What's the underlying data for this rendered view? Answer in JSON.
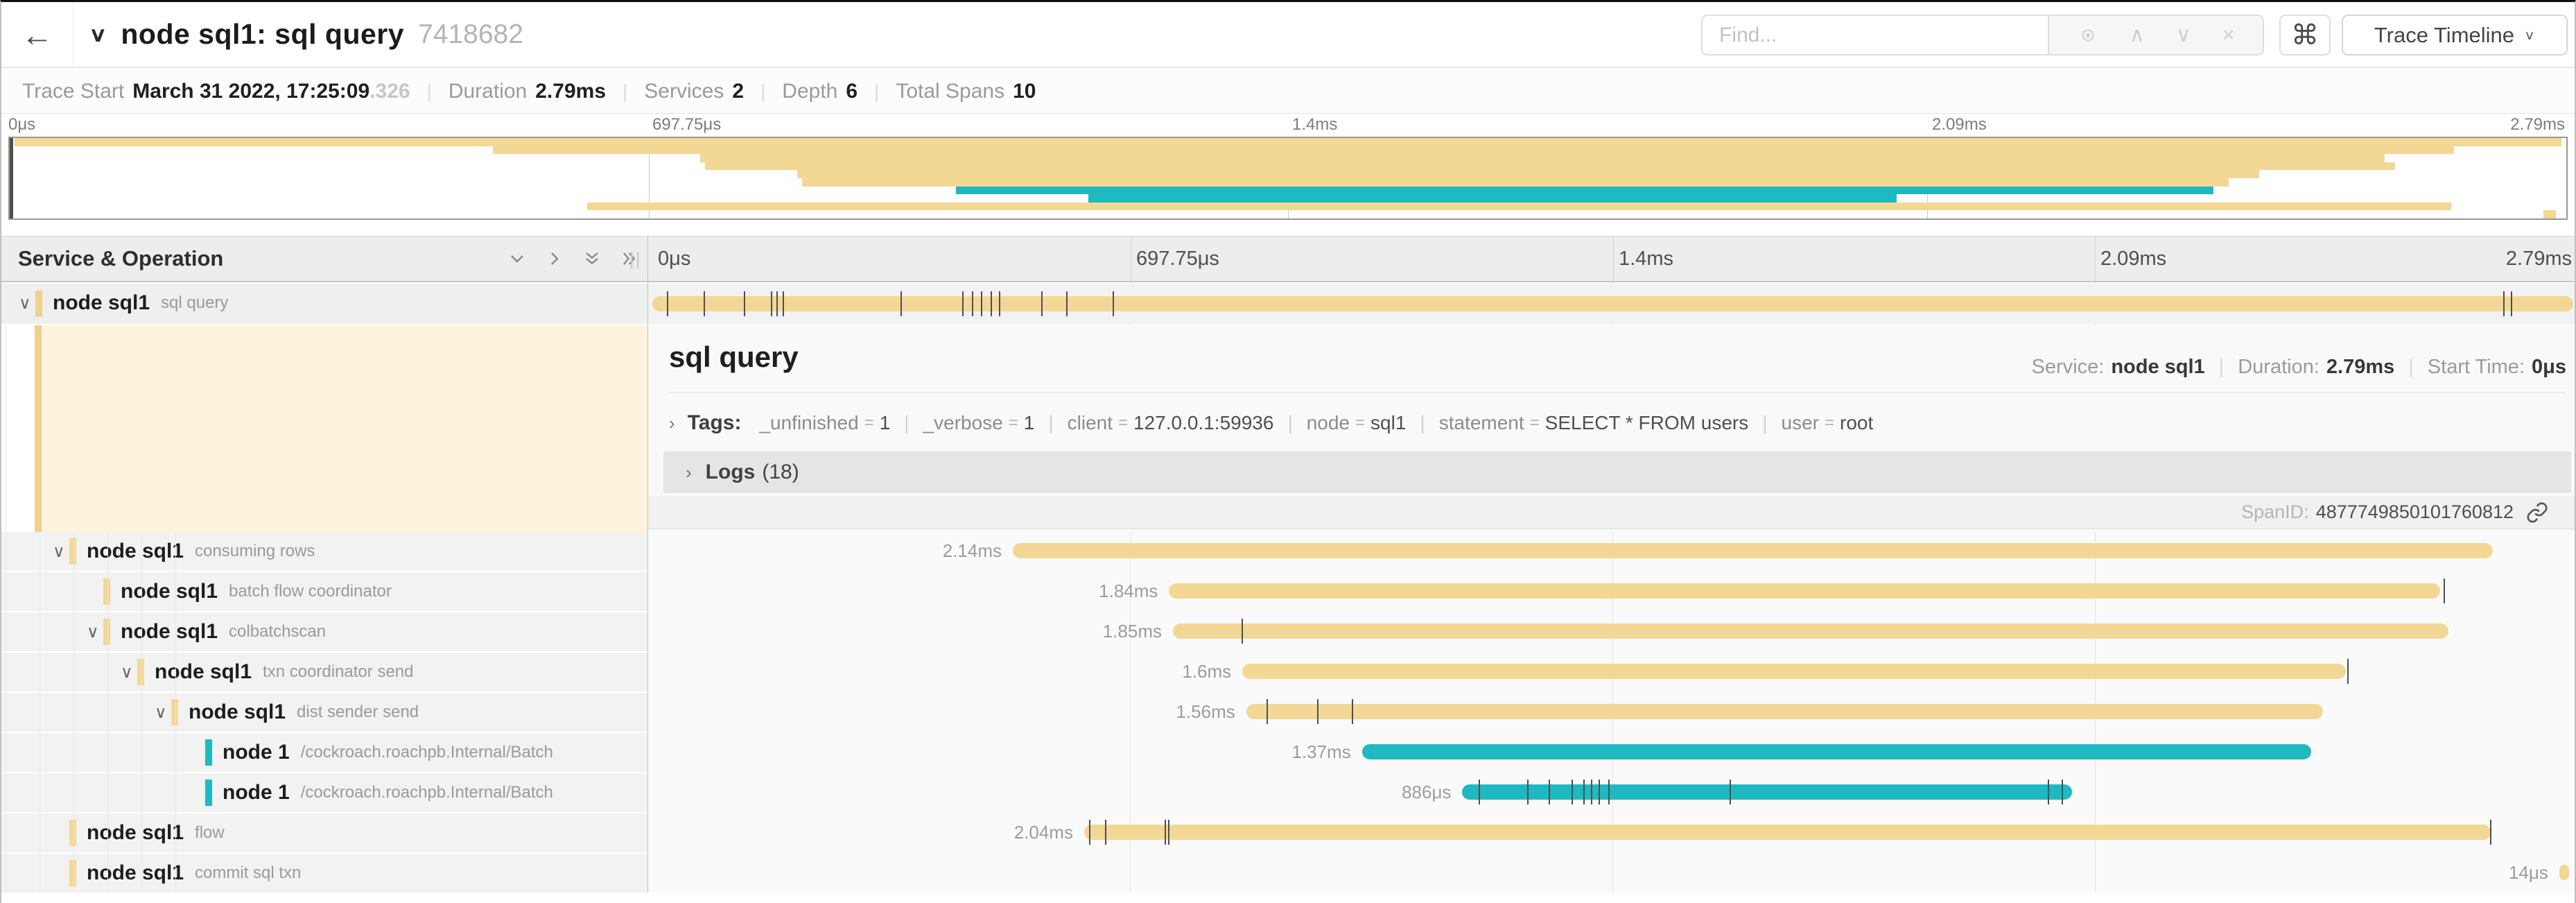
{
  "header": {
    "title": "node sql1: sql query",
    "trace_id": "7418682",
    "find_placeholder": "Find...",
    "shortcut_key": "⌘",
    "view_button": "Trace Timeline"
  },
  "icons": {
    "back": "←",
    "title_chevron": "∨",
    "search_prev": "∧",
    "search_next": "∨",
    "search_clear": "×",
    "view_caret": "∨",
    "row_chevron": "∨",
    "tags_chevron": "›",
    "logs_chevron": "›",
    "resize_grip": "||"
  },
  "info_bar": {
    "trace_start_label": "Trace Start",
    "trace_start_value": "March 31 2022, 17:25:09",
    "trace_start_frac": ".326",
    "duration_label": "Duration",
    "duration_value": "2.79ms",
    "services_label": "Services",
    "services_value": "2",
    "depth_label": "Depth",
    "depth_value": "6",
    "total_spans_label": "Total Spans",
    "total_spans_value": "10",
    "separator": "|"
  },
  "ruler_ticks": [
    "0μs",
    "697.75μs",
    "1.4ms",
    "2.09ms",
    "2.79ms"
  ],
  "colors": {
    "tan": "#f3d795",
    "tan_accent": "#f0d08d",
    "teal": "#1fb9c2",
    "cream": "#fdf3dc",
    "tick": "#4f4f4f"
  },
  "minimap": {
    "rows": [
      {
        "start": 0.002,
        "end": 0.998,
        "color": "tan"
      },
      {
        "start": 0.189,
        "end": 0.956,
        "color": "tan"
      },
      {
        "start": 0.27,
        "end": 0.929,
        "color": "tan"
      },
      {
        "start": 0.272,
        "end": 0.933,
        "color": "tan"
      },
      {
        "start": 0.308,
        "end": 0.88,
        "color": "tan"
      },
      {
        "start": 0.31,
        "end": 0.868,
        "color": "tan"
      },
      {
        "start": 0.37,
        "end": 0.862,
        "color": "teal"
      },
      {
        "start": 0.422,
        "end": 0.738,
        "color": "teal"
      },
      {
        "start": 0.226,
        "end": 0.955,
        "color": "tan"
      },
      {
        "start": 0.991,
        "end": 0.996,
        "color": "tan"
      }
    ]
  },
  "left_header": {
    "title": "Service & Operation"
  },
  "selected_span": {
    "service": "node sql1",
    "operation": "sql query",
    "bar": {
      "start": 0.002,
      "end": 0.998,
      "color": "tan"
    },
    "ticks": [
      0.01,
      0.029,
      0.05,
      0.064,
      0.067,
      0.07,
      0.131,
      0.163,
      0.168,
      0.173,
      0.178,
      0.182,
      0.204,
      0.217,
      0.241,
      0.962,
      0.966
    ]
  },
  "rows": [
    {
      "service": "node sql1",
      "operation": "consuming rows",
      "color": "tan",
      "depth": 1,
      "chevron": true,
      "duration": "2.14ms",
      "start": 0.189,
      "end": 0.956,
      "ticks": []
    },
    {
      "service": "node sql1",
      "operation": "batch flow coordinator",
      "color": "tan",
      "depth": 2,
      "chevron": false,
      "duration": "1.84ms",
      "start": 0.27,
      "end": 0.929,
      "ticks": [
        0.931
      ]
    },
    {
      "service": "node sql1",
      "operation": "colbatchscan",
      "color": "tan",
      "depth": 2,
      "chevron": true,
      "duration": "1.85ms",
      "start": 0.272,
      "end": 0.933,
      "ticks": [
        0.308
      ]
    },
    {
      "service": "node sql1",
      "operation": "txn coordinator send",
      "color": "tan",
      "depth": 3,
      "chevron": true,
      "duration": "1.6ms",
      "start": 0.308,
      "end": 0.88,
      "ticks": [
        0.881
      ]
    },
    {
      "service": "node sql1",
      "operation": "dist sender send",
      "color": "tan",
      "depth": 4,
      "chevron": true,
      "duration": "1.56ms",
      "start": 0.31,
      "end": 0.868,
      "ticks": [
        0.321,
        0.347,
        0.365
      ]
    },
    {
      "service": "node 1",
      "operation": "/cockroach.roachpb.Internal/Batch",
      "color": "teal",
      "depth": 5,
      "chevron": false,
      "duration": "1.37ms",
      "start": 0.37,
      "end": 0.862,
      "ticks": []
    },
    {
      "service": "node 1",
      "operation": "/cockroach.roachpb.Internal/Batch",
      "color": "teal",
      "depth": 5,
      "chevron": false,
      "duration": "886μs",
      "start": 0.422,
      "end": 0.738,
      "ticks": [
        0.431,
        0.456,
        0.467,
        0.479,
        0.485,
        0.489,
        0.493,
        0.498,
        0.561,
        0.726,
        0.733
      ]
    },
    {
      "service": "node sql1",
      "operation": "flow",
      "color": "tan",
      "depth": 1,
      "chevron": false,
      "duration": "2.04ms",
      "start": 0.226,
      "end": 0.955,
      "ticks": [
        0.229,
        0.237,
        0.268,
        0.27,
        0.955
      ]
    },
    {
      "service": "node sql1",
      "operation": "commit sql txn",
      "color": "tan",
      "depth": 1,
      "chevron": false,
      "duration": "14μs",
      "start": 0.9906,
      "end": 0.9956,
      "ticks": []
    }
  ],
  "detail": {
    "title": "sql query",
    "service_label": "Service:",
    "service_value": "node sql1",
    "duration_label": "Duration:",
    "duration_value": "2.79ms",
    "start_label": "Start Time:",
    "start_value": "0μs",
    "tags_label": "Tags:",
    "tags": [
      {
        "key": "_unfinished",
        "value": "1"
      },
      {
        "key": "_verbose",
        "value": "1"
      },
      {
        "key": "client",
        "value": "127.0.0.1:59936"
      },
      {
        "key": "node",
        "value": "sql1"
      },
      {
        "key": "statement",
        "value": "SELECT * FROM users"
      },
      {
        "key": "user",
        "value": "root"
      }
    ],
    "logs_label": "Logs",
    "logs_count": "(18)",
    "span_id_label": "SpanID:",
    "span_id": "4877749850101760812"
  }
}
